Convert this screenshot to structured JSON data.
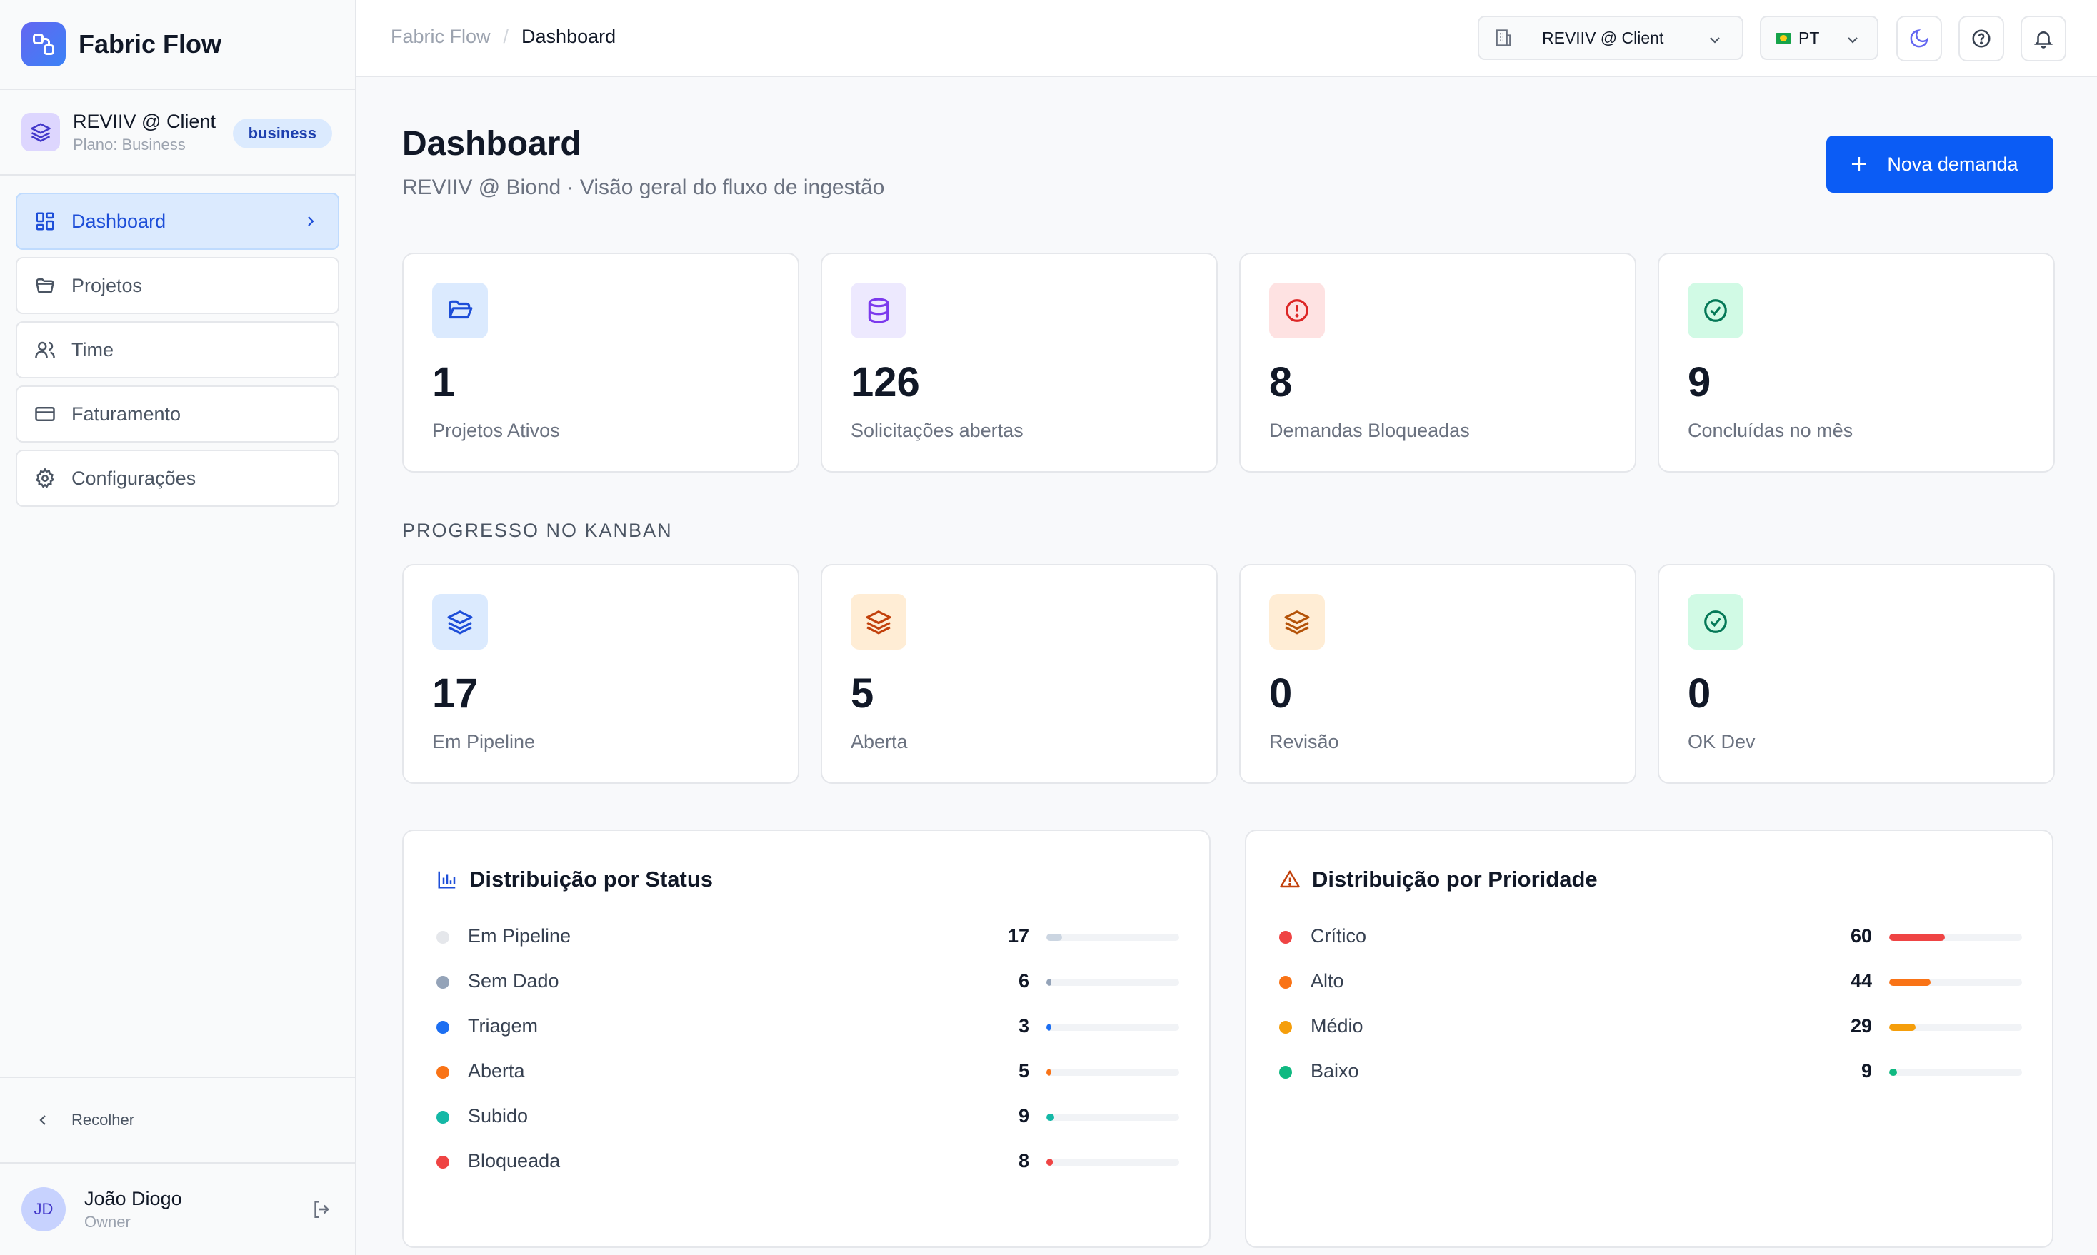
{
  "brand": {
    "name": "Fabric Flow"
  },
  "tenant": {
    "name": "REVIIV @ Client",
    "plan": "Plano: Business",
    "badge": "business"
  },
  "sidebar": {
    "items": [
      {
        "label": "Dashboard",
        "icon": "grid-icon",
        "active": true
      },
      {
        "label": "Projetos",
        "icon": "folder-icon"
      },
      {
        "label": "Time",
        "icon": "users-icon"
      },
      {
        "label": "Faturamento",
        "icon": "credit-card-icon"
      },
      {
        "label": "Configurações",
        "icon": "gear-icon"
      }
    ],
    "collapse_label": "Recolher"
  },
  "user": {
    "initials": "JD",
    "name": "João Diogo",
    "role": "Owner"
  },
  "topbar": {
    "breadcrumb_root": "Fabric Flow",
    "breadcrumb_separator": "/",
    "breadcrumb_current": "Dashboard",
    "org_select": "REVIIV @ Client",
    "lang_select": "PT"
  },
  "page": {
    "title": "Dashboard",
    "subtitle": "REVIIV @ Biond · Visão geral do fluxo de ingestão",
    "new_button": "Nova demanda",
    "new_button_icon": "+"
  },
  "stats": [
    {
      "value": "1",
      "label": "Projetos Ativos",
      "icon": "folder-open-icon",
      "bg": "#dbeafe",
      "color": "#1d4ed8"
    },
    {
      "value": "126",
      "label": "Solicitações abertas",
      "icon": "database-icon",
      "bg": "#ede9fe",
      "color": "#7c3aed"
    },
    {
      "value": "8",
      "label": "Demandas Bloqueadas",
      "icon": "alert-circle-icon",
      "bg": "#fee2e2",
      "color": "#dc2626"
    },
    {
      "value": "9",
      "label": "Concluídas no mês",
      "icon": "check-circle-icon",
      "bg": "#d1fae5",
      "color": "#047857"
    }
  ],
  "kanban": {
    "section_title": "PROGRESSO NO KANBAN",
    "items": [
      {
        "value": "17",
        "label": "Em Pipeline",
        "icon": "layers-icon",
        "bg": "#dbeafe",
        "color": "#1d4ed8"
      },
      {
        "value": "5",
        "label": "Aberta",
        "icon": "layers-icon",
        "bg": "#ffedd5",
        "color": "#c2410c"
      },
      {
        "value": "0",
        "label": "Revisão",
        "icon": "layers-icon",
        "bg": "#ffedd5",
        "color": "#b45309"
      },
      {
        "value": "0",
        "label": "OK Dev",
        "icon": "check-circle-icon",
        "bg": "#d1fae5",
        "color": "#047857"
      }
    ]
  },
  "status_panel": {
    "title": "Distribuição por Status",
    "icon": "bar-chart-icon",
    "rows": [
      {
        "label": "Em Pipeline",
        "value": "17",
        "fraction": 0.12,
        "color": "#e5e7eb",
        "bar_color": "#cbd5e1"
      },
      {
        "label": "Sem Dado",
        "value": "6",
        "fraction": 0.04,
        "color": "#94a3b8",
        "bar_color": "#94a3b8"
      },
      {
        "label": "Triagem",
        "value": "3",
        "fraction": 0.02,
        "color": "#1d6ff2",
        "bar_color": "#1d6ff2"
      },
      {
        "label": "Aberta",
        "value": "5",
        "fraction": 0.03,
        "color": "#f97316",
        "bar_color": "#f97316"
      },
      {
        "label": "Subido",
        "value": "9",
        "fraction": 0.06,
        "color": "#14b8a6",
        "bar_color": "#14b8a6"
      },
      {
        "label": "Bloqueada",
        "value": "8",
        "fraction": 0.05,
        "color": "#ef4444",
        "bar_color": "#ef4444"
      }
    ]
  },
  "priority_panel": {
    "title": "Distribuição por Prioridade",
    "icon": "warning-triangle-icon",
    "rows": [
      {
        "label": "Crítico",
        "value": "60",
        "fraction": 0.42,
        "color": "#ef4444",
        "bar_color": "#ef4444"
      },
      {
        "label": "Alto",
        "value": "44",
        "fraction": 0.31,
        "color": "#f97316",
        "bar_color": "#f97316"
      },
      {
        "label": "Médio",
        "value": "29",
        "fraction": 0.2,
        "color": "#f59e0b",
        "bar_color": "#f59e0b"
      },
      {
        "label": "Baixo",
        "value": "9",
        "fraction": 0.06,
        "color": "#10b981",
        "bar_color": "#10b981"
      }
    ]
  }
}
